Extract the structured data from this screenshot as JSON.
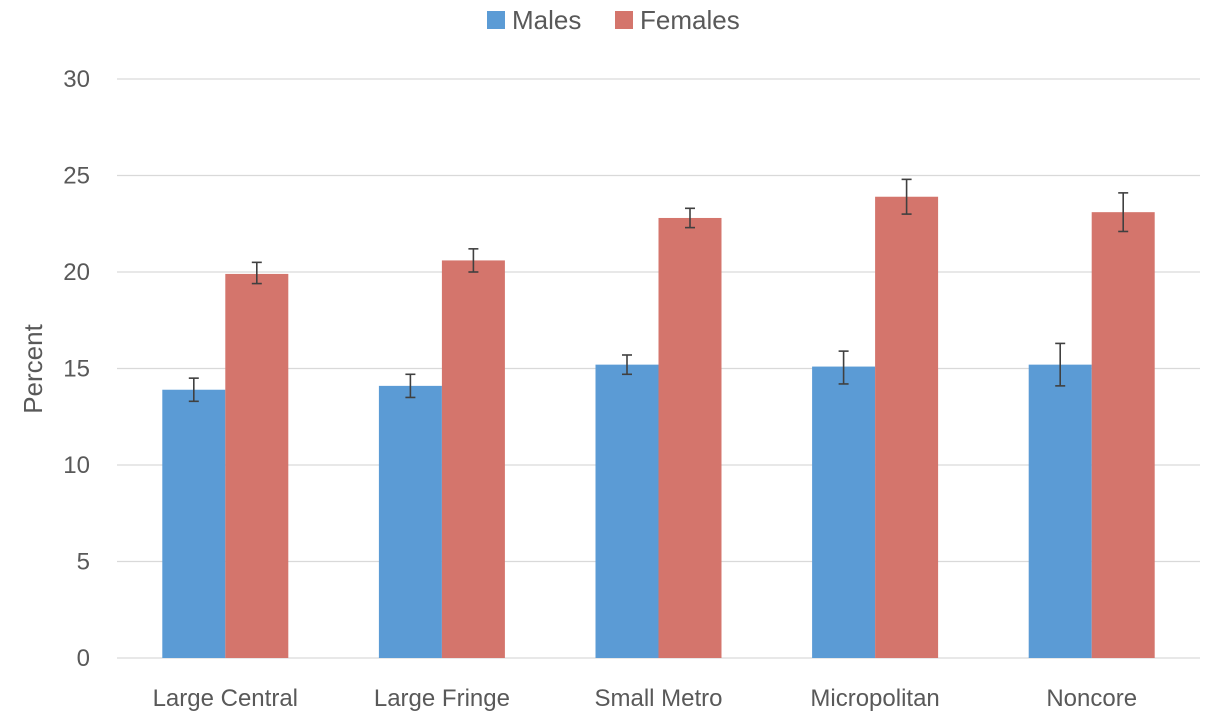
{
  "chart_data": {
    "type": "bar",
    "title": "",
    "xlabel": "",
    "ylabel": "Percent",
    "ylim": [
      0,
      30
    ],
    "yticks": [
      0,
      5,
      10,
      15,
      20,
      25,
      30
    ],
    "grid": true,
    "legend_position": "top",
    "categories": [
      "Large Central",
      "Large Fringe",
      "Small Metro",
      "Micropolitan",
      "Noncore"
    ],
    "series": [
      {
        "name": "Males",
        "color": "#5B9BD5",
        "values": [
          13.9,
          14.1,
          15.2,
          15.1,
          15.2
        ],
        "error_low": [
          13.3,
          13.5,
          14.7,
          14.2,
          14.1
        ],
        "error_high": [
          14.5,
          14.7,
          15.7,
          15.9,
          16.3
        ]
      },
      {
        "name": "Females",
        "color": "#D4756C",
        "values": [
          19.9,
          20.6,
          22.8,
          23.9,
          23.1
        ],
        "error_low": [
          19.4,
          20.0,
          22.3,
          23.0,
          22.1
        ],
        "error_high": [
          20.5,
          21.2,
          23.3,
          24.8,
          24.1
        ]
      }
    ]
  }
}
